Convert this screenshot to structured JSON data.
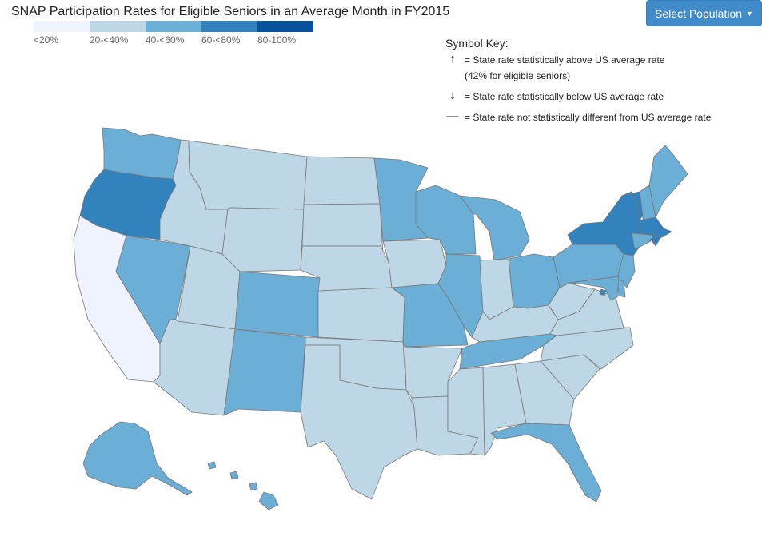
{
  "title": "SNAP Participation Rates for Eligible Seniors in an Average Month in FY2015",
  "select_button": {
    "label": "Select Population"
  },
  "legend": [
    {
      "label": "<20%",
      "color": "#eff3ff"
    },
    {
      "label": "20-<40%",
      "color": "#bdd7e7"
    },
    {
      "label": "40-<60%",
      "color": "#6baed6"
    },
    {
      "label": "60-<80%",
      "color": "#3182bd"
    },
    {
      "label": "80-100%",
      "color": "#08519c"
    }
  ],
  "symbol_key": {
    "heading": "Symbol Key:",
    "above": "= State rate statistically above US average rate",
    "above_note": "(42% for eligible seniors)",
    "below": "= State rate statistically below US average rate",
    "same": "= State rate not statistically different from US average rate",
    "above_icon": "arrow-up-icon",
    "below_icon": "arrow-down-icon",
    "same_icon": "dash-icon"
  },
  "state_bins": {
    "WA": 2,
    "OR": 3,
    "CA": 0,
    "NV": 2,
    "ID": 1,
    "MT": 1,
    "WY": 1,
    "UT": 1,
    "AZ": 1,
    "CO": 2,
    "NM": 2,
    "ND": 1,
    "SD": 1,
    "NE": 1,
    "KS": 1,
    "OK": 1,
    "TX": 1,
    "MN": 2,
    "IA": 1,
    "MO": 2,
    "AR": 1,
    "LA": 1,
    "WI": 2,
    "IL": 2,
    "MI": 2,
    "IN": 1,
    "OH": 2,
    "KY": 1,
    "TN": 2,
    "MS": 1,
    "AL": 1,
    "GA": 1,
    "FL": 2,
    "SC": 1,
    "NC": 1,
    "VA": 1,
    "WV": 1,
    "PA": 2,
    "NY": 3,
    "VT": 3,
    "NH": 2,
    "ME": 2,
    "MA": 3,
    "RI": 3,
    "CT": 2,
    "NJ": 2,
    "DE": 2,
    "MD": 2,
    "DC": 3,
    "AK": 2,
    "HI": 2
  }
}
